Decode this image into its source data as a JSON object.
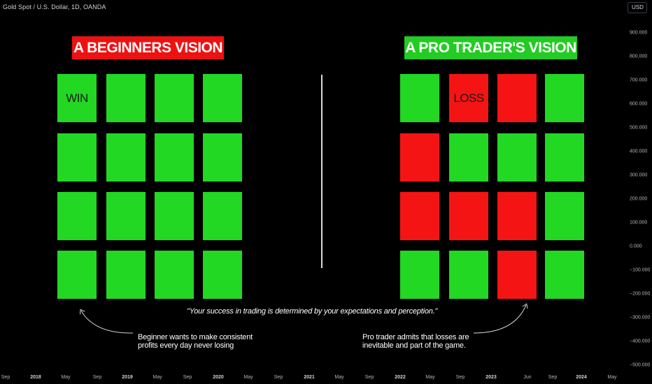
{
  "header": {
    "title": "Gold Spot / U.S. Dollar, 1D, OANDA"
  },
  "currency_button": {
    "label": "USD"
  },
  "y_axis": {
    "labels": [
      "900.000",
      "800.000",
      "700.000",
      "600.000",
      "500.000",
      "400.000",
      "300.000",
      "200.000",
      "100.000",
      "0.000",
      "−100.000",
      "−200.000",
      "−300.000",
      "−400.000",
      "−500.000"
    ]
  },
  "x_axis": {
    "labels": [
      {
        "text": "Sep",
        "year": false
      },
      {
        "text": "2018",
        "year": true
      },
      {
        "text": "May",
        "year": false
      },
      {
        "text": "Sep",
        "year": false
      },
      {
        "text": "2019",
        "year": true
      },
      {
        "text": "May",
        "year": false
      },
      {
        "text": "Sep",
        "year": false
      },
      {
        "text": "2020",
        "year": true
      },
      {
        "text": "May",
        "year": false
      },
      {
        "text": "Sep",
        "year": false
      },
      {
        "text": "2021",
        "year": true
      },
      {
        "text": "May",
        "year": false
      },
      {
        "text": "Sep",
        "year": false
      },
      {
        "text": "2022",
        "year": true
      },
      {
        "text": "May",
        "year": false
      },
      {
        "text": "Sep",
        "year": false
      },
      {
        "text": "2023",
        "year": true
      },
      {
        "text": "Jun",
        "year": false
      },
      {
        "text": "Sep",
        "year": false
      },
      {
        "text": "2024",
        "year": true
      },
      {
        "text": "May",
        "year": false
      }
    ]
  },
  "colors": {
    "win_green": "#22d822",
    "loss_red": "#f51414",
    "banner_red": "#ee1111",
    "banner_green": "#22cc22"
  },
  "left_panel": {
    "title": "A BEGINNERS VISION",
    "grid": [
      [
        "win",
        "win",
        "win",
        "win"
      ],
      [
        "win",
        "win",
        "win",
        "win"
      ],
      [
        "win",
        "win",
        "win",
        "win"
      ],
      [
        "win",
        "win",
        "win",
        "win"
      ]
    ],
    "tile_label": "WIN",
    "note_lines": [
      "Beginner wants to make consistent",
      "profits every day never losing"
    ]
  },
  "right_panel": {
    "title": "A PRO TRADER'S VISION",
    "grid": [
      [
        "win",
        "loss",
        "loss",
        "win"
      ],
      [
        "loss",
        "win",
        "win",
        "win"
      ],
      [
        "loss",
        "loss",
        "loss",
        "win"
      ],
      [
        "win",
        "win",
        "loss",
        "win"
      ]
    ],
    "tile_label": "LOSS",
    "note_lines": [
      "Pro trader admits that losses are",
      "inevitable and part of the game."
    ]
  },
  "quote": "\"Your success in trading is determined by your expectations and perception.\""
}
